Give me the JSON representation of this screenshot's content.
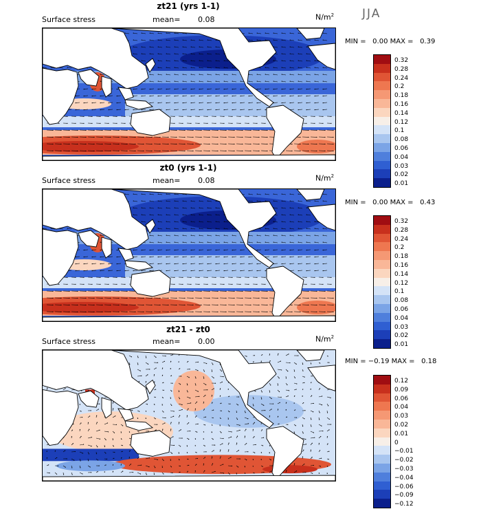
{
  "season": "JJA",
  "units": "N/m",
  "units_sup": "2",
  "panels": [
    {
      "title": "zt21 (yrs 1-1)",
      "field": "Surface stress",
      "mean_label": "mean=",
      "mean_value": "0.08",
      "min_label": "MIN =",
      "min_value": "0.00",
      "max_label": "MAX =",
      "max_value": "0.39",
      "levels": [
        "0.32",
        "0.28",
        "0.24",
        "0.2",
        "0.18",
        "0.16",
        "0.14",
        "0.12",
        "0.1",
        "0.08",
        "0.06",
        "0.04",
        "0.03",
        "0.02",
        "0.01"
      ]
    },
    {
      "title": "zt0 (yrs 1-1)",
      "field": "Surface stress",
      "mean_label": "mean=",
      "mean_value": "0.08",
      "min_label": "MIN =",
      "min_value": "0.00",
      "max_label": "MAX =",
      "max_value": "0.43",
      "levels": [
        "0.32",
        "0.28",
        "0.24",
        "0.2",
        "0.18",
        "0.16",
        "0.14",
        "0.12",
        "0.1",
        "0.08",
        "0.06",
        "0.04",
        "0.03",
        "0.02",
        "0.01"
      ]
    },
    {
      "title": "zt21 - zt0",
      "field": "Surface stress",
      "mean_label": "mean=",
      "mean_value": "0.00",
      "min_label": "MIN =",
      "min_value": "−0.19",
      "max_label": "MAX =",
      "max_value": "0.18",
      "levels": [
        "0.12",
        "0.09",
        "0.06",
        "0.04",
        "0.03",
        "0.02",
        "0.01",
        "0",
        "−0.01",
        "−0.02",
        "−0.03",
        "−0.04",
        "−0.06",
        "−0.09",
        "−0.12"
      ]
    }
  ],
  "colorbar_colors": [
    "#a00d12",
    "#c8301d",
    "#e05535",
    "#ee7750",
    "#f59874",
    "#f9b798",
    "#fbd6bf",
    "#f7efe8",
    "#d4e3f7",
    "#a9c6ef",
    "#7ba4e6",
    "#4f7fdc",
    "#2f5fd2",
    "#1c3fb8",
    "#0b1f8c"
  ]
}
